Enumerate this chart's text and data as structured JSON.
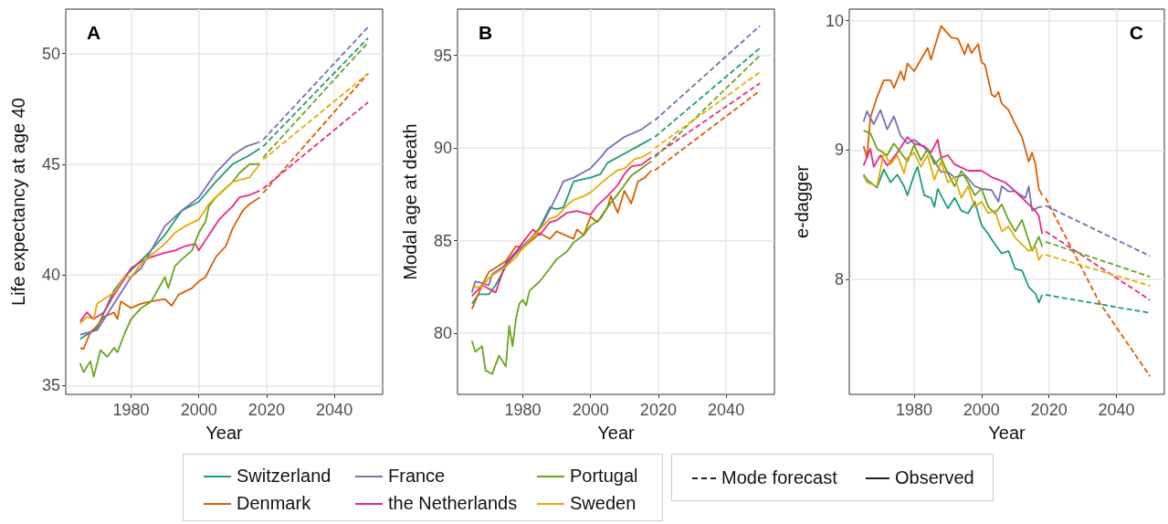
{
  "chart_data": [
    {
      "type": "line",
      "title": "A",
      "xlabel": "Year",
      "ylabel": "Life expectancy at age 40",
      "xlim": [
        1960.75,
        2054.25
      ],
      "xticks": [
        1980,
        2000,
        2020,
        2040
      ],
      "ylim": [
        34.6,
        52.0
      ],
      "yticks": [
        35,
        40,
        45,
        50
      ],
      "grid": true,
      "legend": "bottom",
      "annotations": [
        "Mode forecast",
        "Observed"
      ],
      "series": [
        {
          "name": "Switzerland",
          "color": "#1b9e77",
          "x": [
            1965,
            1970,
            1975,
            1978,
            1985,
            1990,
            1995,
            2000,
            2005,
            2010,
            2015,
            2018
          ],
          "values": [
            37.1,
            37.6,
            39.3,
            39.9,
            40.95,
            41.8,
            42.9,
            43.3,
            44.2,
            45.0,
            45.4,
            45.7
          ]
        },
        {
          "color": "#1b9e77",
          "line_style": "dashed",
          "x": [
            2019,
            2050
          ],
          "values": [
            45.8,
            50.7
          ]
        },
        {
          "name": "Denmark",
          "color": "#d95f02",
          "x": [
            1965,
            1966,
            1968,
            1970,
            1972,
            1975,
            1976,
            1977,
            1980,
            1983,
            1986,
            1990,
            1992,
            1994,
            1998,
            2000,
            2002,
            2005,
            2008,
            2010,
            2013,
            2015,
            2018
          ],
          "values": [
            36.7,
            36.65,
            37.4,
            37.7,
            38.1,
            38.3,
            38.0,
            38.8,
            38.5,
            38.7,
            38.8,
            38.9,
            38.6,
            39.1,
            39.4,
            39.7,
            39.9,
            40.8,
            41.3,
            42.1,
            42.9,
            43.2,
            43.5
          ]
        },
        {
          "color": "#d95f02",
          "line_style": "dashed",
          "x": [
            2019,
            2050
          ],
          "values": [
            43.7,
            49.1
          ]
        },
        {
          "name": "France",
          "color": "#7570b3",
          "x": [
            1965,
            1970,
            1975,
            1980,
            1983,
            1990,
            1995,
            2000,
            2005,
            2010,
            2014,
            2018
          ],
          "values": [
            37.3,
            37.5,
            38.7,
            39.9,
            40.3,
            42.2,
            42.9,
            43.5,
            44.6,
            45.4,
            45.8,
            46.0
          ]
        },
        {
          "color": "#7570b3",
          "line_style": "dashed",
          "x": [
            2019,
            2050
          ],
          "values": [
            46.1,
            51.2
          ]
        },
        {
          "name": "the Netherlands",
          "color": "#e7298a",
          "x": [
            1965,
            1967,
            1969,
            1972,
            1975,
            1978,
            1980,
            1983,
            1986,
            1990,
            1993,
            1996,
            1999,
            2000,
            2003,
            2006,
            2010,
            2012,
            2015,
            2018
          ],
          "values": [
            37.9,
            38.3,
            38.0,
            38.3,
            39.1,
            39.8,
            40.3,
            40.6,
            40.8,
            41.0,
            41.1,
            41.3,
            41.4,
            41.1,
            41.8,
            42.5,
            43.1,
            43.5,
            43.6,
            43.8
          ]
        },
        {
          "color": "#e7298a",
          "line_style": "dashed",
          "x": [
            2019,
            2050
          ],
          "values": [
            43.9,
            47.8
          ]
        },
        {
          "name": "Portugal",
          "color": "#66a61e",
          "x": [
            1965,
            1966,
            1968,
            1969,
            1971,
            1973,
            1975,
            1976,
            1978,
            1980,
            1983,
            1986,
            1990,
            1991,
            1993,
            1995,
            1998,
            2000,
            2002,
            2003,
            2005,
            2010,
            2012,
            2015,
            2018
          ],
          "values": [
            36.0,
            35.6,
            36.1,
            35.4,
            36.6,
            36.3,
            36.7,
            36.5,
            37.3,
            38.0,
            38.5,
            38.8,
            39.9,
            39.4,
            40.4,
            40.7,
            41.1,
            41.9,
            42.4,
            43.1,
            43.5,
            44.2,
            44.6,
            45.0,
            45.0
          ]
        },
        {
          "color": "#66a61e",
          "line_style": "dashed",
          "x": [
            2019,
            2050
          ],
          "values": [
            45.3,
            50.5
          ]
        },
        {
          "name": "Sweden",
          "color": "#e6ab02",
          "x": [
            1965,
            1967,
            1969,
            1970,
            1973,
            1975,
            1978,
            1980,
            1983,
            1986,
            1990,
            1993,
            1996,
            2000,
            2003,
            2005,
            2008,
            2010,
            2015,
            2018
          ],
          "values": [
            37.8,
            38.1,
            38.0,
            38.7,
            39.0,
            39.2,
            39.9,
            39.9,
            40.5,
            40.9,
            41.4,
            41.9,
            42.2,
            42.5,
            43.2,
            43.5,
            43.9,
            44.2,
            44.4,
            45.0
          ]
        },
        {
          "color": "#e6ab02",
          "line_style": "dashed",
          "x": [
            2019,
            2050
          ],
          "values": [
            45.2,
            49.1
          ]
        }
      ]
    },
    {
      "type": "line",
      "title": "B",
      "xlabel": "Year",
      "ylabel": "Modal age at death",
      "xlim": [
        1960.75,
        2054.25
      ],
      "xticks": [
        1980,
        2000,
        2020,
        2040
      ],
      "ylim": [
        76.7,
        97.5
      ],
      "yticks": [
        80,
        85,
        90,
        95
      ],
      "grid": true,
      "legend": "bottom",
      "series": [
        {
          "color": "#1b9e77",
          "x": [
            1965,
            1967,
            1970,
            1972,
            1975,
            1978,
            1980,
            1985,
            1988,
            1990,
            1992,
            1995,
            2000,
            2003,
            2005,
            2010,
            2015,
            2018
          ],
          "values": [
            81.6,
            82.1,
            82.1,
            82.6,
            83.6,
            84.4,
            84.6,
            85.7,
            86.8,
            86.7,
            86.8,
            88.2,
            88.4,
            88.6,
            89.2,
            89.7,
            90.2,
            90.5
          ]
        },
        {
          "color": "#1b9e77",
          "line_style": "dashed",
          "x": [
            2019,
            2050
          ],
          "values": [
            90.6,
            95.4
          ]
        },
        {
          "color": "#d95f02",
          "x": [
            1965,
            1968,
            1970,
            1975,
            1978,
            1980,
            1985,
            1988,
            1990,
            1995,
            1996,
            1998,
            2000,
            2002,
            2005,
            2006,
            2008,
            2010,
            2012,
            2014,
            2016,
            2018
          ],
          "values": [
            81.3,
            82.6,
            83.3,
            83.9,
            84.7,
            84.6,
            85.4,
            85.1,
            85.5,
            85.1,
            85.6,
            85.3,
            86.3,
            86.0,
            86.8,
            87.4,
            86.5,
            87.7,
            87.0,
            88.2,
            88.4,
            88.8
          ]
        },
        {
          "color": "#d95f02",
          "line_style": "dashed",
          "x": [
            2019,
            2050
          ],
          "values": [
            88.8,
            93.1
          ]
        },
        {
          "color": "#7570b3",
          "x": [
            1965,
            1966,
            1970,
            1971,
            1975,
            1978,
            1980,
            1985,
            1990,
            1992,
            1995,
            2000,
            2003,
            2005,
            2010,
            2015,
            2018
          ],
          "values": [
            82.2,
            82.8,
            82.6,
            83.2,
            83.7,
            84.3,
            84.7,
            85.6,
            87.4,
            88.2,
            88.4,
            88.9,
            89.5,
            89.95,
            90.6,
            91.0,
            91.4
          ]
        },
        {
          "color": "#7570b3",
          "line_style": "dashed",
          "x": [
            2019,
            2050
          ],
          "values": [
            91.5,
            96.6
          ]
        },
        {
          "color": "#e7298a",
          "x": [
            1965,
            1968,
            1972,
            1975,
            1978,
            1980,
            1983,
            1985,
            1988,
            1990,
            1993,
            1996,
            2000,
            2002,
            2005,
            2008,
            2010,
            2012,
            2015,
            2018
          ],
          "values": [
            82.0,
            82.6,
            82.2,
            83.8,
            84.4,
            84.9,
            85.6,
            85.3,
            86.0,
            86.1,
            86.5,
            86.6,
            86.4,
            86.9,
            87.4,
            88.0,
            88.6,
            89.0,
            89.1,
            89.5
          ]
        },
        {
          "color": "#e7298a",
          "line_style": "dashed",
          "x": [
            2019,
            2050
          ],
          "values": [
            89.6,
            93.5
          ]
        },
        {
          "color": "#66a61e",
          "x": [
            1965,
            1966,
            1968,
            1969,
            1971,
            1973,
            1975,
            1976,
            1977,
            1978,
            1979,
            1980,
            1981,
            1982,
            1985,
            1988,
            1990,
            1993,
            1995,
            1998,
            2000,
            2003,
            2005,
            2008,
            2010,
            2012,
            2015,
            2018
          ],
          "values": [
            79.6,
            79.0,
            79.3,
            78.0,
            77.8,
            78.8,
            78.2,
            80.4,
            79.3,
            80.8,
            81.6,
            81.8,
            81.5,
            82.3,
            82.8,
            83.5,
            84.0,
            84.4,
            84.9,
            85.3,
            85.8,
            86.2,
            86.8,
            87.5,
            88.0,
            88.5,
            88.9,
            89.3
          ]
        },
        {
          "color": "#66a61e",
          "line_style": "dashed",
          "x": [
            2019,
            2050
          ],
          "values": [
            89.5,
            95.0
          ]
        },
        {
          "color": "#e6ab02",
          "x": [
            1965,
            1968,
            1970,
            1975,
            1978,
            1980,
            1985,
            1988,
            1990,
            1993,
            1995,
            1998,
            2000,
            2005,
            2008,
            2010,
            2013,
            2015,
            2018
          ],
          "values": [
            82.5,
            82.5,
            83.0,
            83.6,
            84.1,
            84.6,
            85.6,
            86.2,
            86.3,
            86.9,
            87.2,
            87.4,
            87.6,
            88.4,
            88.8,
            88.9,
            89.4,
            89.5,
            89.8
          ]
        },
        {
          "color": "#e6ab02",
          "line_style": "dashed",
          "x": [
            2019,
            2050
          ],
          "values": [
            90.0,
            94.1
          ]
        }
      ]
    },
    {
      "type": "line",
      "title": "C",
      "xlabel": "Year",
      "ylabel": "e-dagger",
      "xlim": [
        1960.75,
        2054.25
      ],
      "xticks": [
        1980,
        2000,
        2020,
        2040
      ],
      "ylim": [
        7.11,
        10.09
      ],
      "yticks": [
        8,
        9,
        10
      ],
      "grid": true,
      "legend": "bottom",
      "series": [
        {
          "color": "#1b9e77",
          "x": [
            1965,
            1966,
            1969,
            1971,
            1973,
            1975,
            1977,
            1978,
            1980,
            1981,
            1983,
            1985,
            1986,
            1987,
            1990,
            1992,
            1994,
            1996,
            1998,
            2000,
            2002,
            2004,
            2006,
            2008,
            2010,
            2012,
            2014,
            2016,
            2017,
            2018
          ],
          "values": [
            8.81,
            8.77,
            8.71,
            8.85,
            8.75,
            8.81,
            8.72,
            8.65,
            8.81,
            8.87,
            8.65,
            8.63,
            8.56,
            8.7,
            8.55,
            8.63,
            8.53,
            8.51,
            8.6,
            8.42,
            8.35,
            8.27,
            8.2,
            8.22,
            8.08,
            8.07,
            7.94,
            7.89,
            7.82,
            7.88
          ]
        },
        {
          "color": "#1b9e77",
          "line_style": "dashed",
          "x": [
            2019,
            2050
          ],
          "values": [
            7.88,
            7.74
          ]
        },
        {
          "color": "#d95f02",
          "x": [
            1965,
            1966,
            1967,
            1969,
            1971,
            1973,
            1974,
            1976,
            1977,
            1978,
            1980,
            1982,
            1984,
            1985,
            1986,
            1988,
            1989,
            1991,
            1993,
            1995,
            1996,
            1997,
            1999,
            2000,
            2001,
            2003,
            2004,
            2005,
            2006,
            2008,
            2010,
            2012,
            2014,
            2015,
            2016,
            2017,
            2018
          ],
          "values": [
            9.03,
            8.94,
            9.25,
            9.41,
            9.54,
            9.54,
            9.48,
            9.61,
            9.54,
            9.67,
            9.61,
            9.7,
            9.79,
            9.7,
            9.79,
            9.96,
            9.93,
            9.87,
            9.86,
            9.74,
            9.82,
            9.75,
            9.82,
            9.68,
            9.66,
            9.43,
            9.41,
            9.45,
            9.36,
            9.31,
            9.2,
            9.1,
            8.91,
            8.98,
            8.89,
            8.7,
            8.65
          ]
        },
        {
          "color": "#d95f02",
          "line_style": "dashed",
          "x": [
            2019,
            2035,
            2050
          ],
          "values": [
            8.63,
            7.82,
            7.25
          ]
        },
        {
          "color": "#7570b3",
          "x": [
            1965,
            1966,
            1968,
            1970,
            1972,
            1974,
            1976,
            1978,
            1980,
            1983,
            1985,
            1988,
            1990,
            1992,
            1995,
            1998,
            2000,
            2003,
            2005,
            2006,
            2008,
            2010,
            2013,
            2014,
            2015,
            2017,
            2018
          ],
          "values": [
            9.22,
            9.3,
            9.2,
            9.31,
            9.16,
            9.26,
            9.11,
            9.05,
            9.08,
            9.02,
            8.96,
            8.83,
            8.83,
            8.79,
            8.81,
            8.72,
            8.7,
            8.69,
            8.6,
            8.72,
            8.68,
            8.68,
            8.63,
            8.72,
            8.53,
            8.56,
            8.56
          ]
        },
        {
          "color": "#7570b3",
          "line_style": "dashed",
          "x": [
            2019,
            2050
          ],
          "values": [
            8.57,
            8.18
          ]
        },
        {
          "color": "#e7298a",
          "x": [
            1965,
            1967,
            1968,
            1970,
            1972,
            1975,
            1978,
            1980,
            1983,
            1985,
            1987,
            1988,
            1990,
            1992,
            1996,
            2000,
            2003,
            2005,
            2007,
            2010,
            2014,
            2016,
            2017,
            2018
          ],
          "values": [
            8.88,
            9.01,
            8.87,
            8.96,
            8.88,
            8.98,
            9.1,
            9.05,
            9.03,
            8.98,
            9.08,
            8.94,
            8.96,
            8.89,
            8.84,
            8.84,
            8.79,
            8.77,
            8.75,
            8.68,
            8.58,
            8.53,
            8.49,
            8.35
          ]
        },
        {
          "color": "#e7298a",
          "line_style": "dashed",
          "x": [
            2019,
            2050
          ],
          "values": [
            8.37,
            7.84
          ]
        },
        {
          "color": "#66a61e",
          "x": [
            1965,
            1967,
            1969,
            1972,
            1974,
            1978,
            1980,
            1982,
            1984,
            1986,
            1988,
            1990,
            1992,
            1994,
            1996,
            1998,
            2000,
            2002,
            2004,
            2006,
            2008,
            2010,
            2012,
            2014,
            2015,
            2017,
            2018
          ],
          "values": [
            9.15,
            9.13,
            9.01,
            8.96,
            9.05,
            8.91,
            9.04,
            8.92,
            9.01,
            8.89,
            8.94,
            8.82,
            8.72,
            8.84,
            8.75,
            8.65,
            8.7,
            8.56,
            8.51,
            8.58,
            8.46,
            8.37,
            8.46,
            8.3,
            8.22,
            8.33,
            8.25
          ]
        },
        {
          "color": "#66a61e",
          "line_style": "dashed",
          "x": [
            2019,
            2050
          ],
          "values": [
            8.29,
            8.02
          ]
        },
        {
          "color": "#e6ab02",
          "x": [
            1965,
            1966,
            1969,
            1971,
            1973,
            1975,
            1977,
            1978,
            1980,
            1982,
            1984,
            1986,
            1988,
            1990,
            1992,
            1994,
            1996,
            1998,
            2000,
            2002,
            2004,
            2006,
            2008,
            2010,
            2014,
            2016,
            2017,
            2018
          ],
          "values": [
            8.8,
            8.75,
            8.72,
            8.98,
            8.89,
            8.96,
            8.82,
            8.94,
            8.98,
            8.87,
            8.96,
            8.77,
            8.91,
            8.75,
            8.79,
            8.63,
            8.72,
            8.56,
            8.6,
            8.51,
            8.53,
            8.37,
            8.41,
            8.32,
            8.22,
            8.25,
            8.15,
            8.19
          ]
        },
        {
          "color": "#e6ab02",
          "line_style": "dashed",
          "x": [
            2019,
            2050
          ],
          "values": [
            8.19,
            7.95
          ]
        }
      ]
    }
  ]
}
